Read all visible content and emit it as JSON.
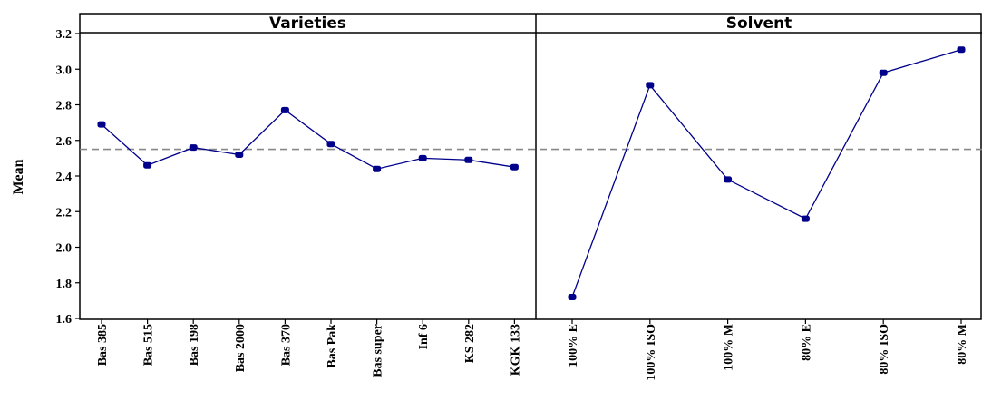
{
  "chart_data": {
    "type": "line",
    "ylabel": "Mean",
    "ylim": [
      1.6,
      3.2
    ],
    "yticks": [
      "1.6",
      "1.8",
      "2.0",
      "2.2",
      "2.4",
      "2.6",
      "2.8",
      "3.0",
      "3.2"
    ],
    "reference_line": 2.55,
    "line_color": "#00008B",
    "reference_color": "#888888",
    "panels": [
      {
        "title": "Varieties",
        "categories": [
          "Bas 385",
          "Bas 515",
          "Bas 198",
          "Bas 2000",
          "Bas 370",
          "Bas Pak",
          "Bas super",
          "Inf 6",
          "KS 282",
          "KGK 133"
        ],
        "values": [
          2.69,
          2.46,
          2.56,
          2.52,
          2.77,
          2.58,
          2.44,
          2.5,
          2.49,
          2.45
        ]
      },
      {
        "title": "Solvent",
        "categories": [
          "100% E",
          "100% ISO",
          "100% M",
          "80% E",
          "80% ISO",
          "80% M"
        ],
        "values": [
          1.72,
          2.91,
          2.38,
          2.16,
          2.98,
          3.11
        ]
      }
    ]
  }
}
